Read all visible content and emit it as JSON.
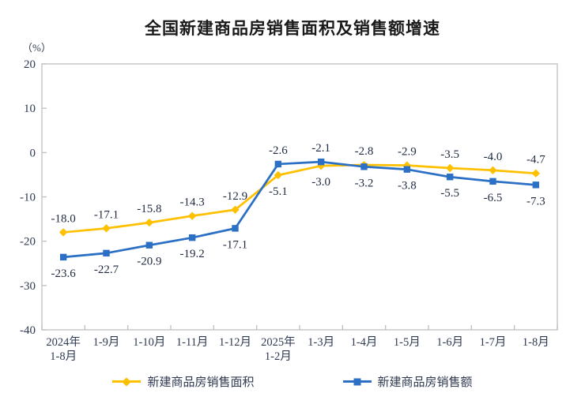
{
  "header": {
    "title": "全国新建商品房销售面积及销售额增速",
    "unit_label": "（%）"
  },
  "chart_data": {
    "type": "line",
    "categories": [
      [
        "2024年",
        "1-8月"
      ],
      [
        "1-9月"
      ],
      [
        "1-10月"
      ],
      [
        "1-11月"
      ],
      [
        "1-12月"
      ],
      [
        "2025年",
        "1-2月"
      ],
      [
        "1-3月"
      ],
      [
        "1-4月"
      ],
      [
        "1-5月"
      ],
      [
        "1-6月"
      ],
      [
        "1-7月"
      ],
      [
        "1-8月"
      ]
    ],
    "series": [
      {
        "id": "sales-area",
        "name": "新建商品房销售面积",
        "color": "#FFC000",
        "marker": "diamond",
        "values": [
          -18.0,
          -17.1,
          -15.8,
          -14.3,
          -12.9,
          -5.1,
          -3.0,
          -2.8,
          -2.9,
          -3.5,
          -4.0,
          -4.7
        ]
      },
      {
        "id": "sales-value",
        "name": "新建商品房销售额",
        "color": "#2B70C5",
        "marker": "square",
        "values": [
          -23.6,
          -22.7,
          -20.9,
          -19.2,
          -17.1,
          -2.6,
          -2.1,
          -3.2,
          -3.8,
          -5.5,
          -6.5,
          -7.3
        ]
      }
    ],
    "ylim": [
      -40,
      20
    ],
    "yticks": [
      20,
      10,
      0,
      -10,
      -20,
      -30,
      -40
    ],
    "grid": false,
    "legend_position": "bottom",
    "value_decimals": 1,
    "axis_color": "#BFBFBF",
    "label_color": "#2E3A52",
    "data_label_color": "#1F2A40"
  }
}
